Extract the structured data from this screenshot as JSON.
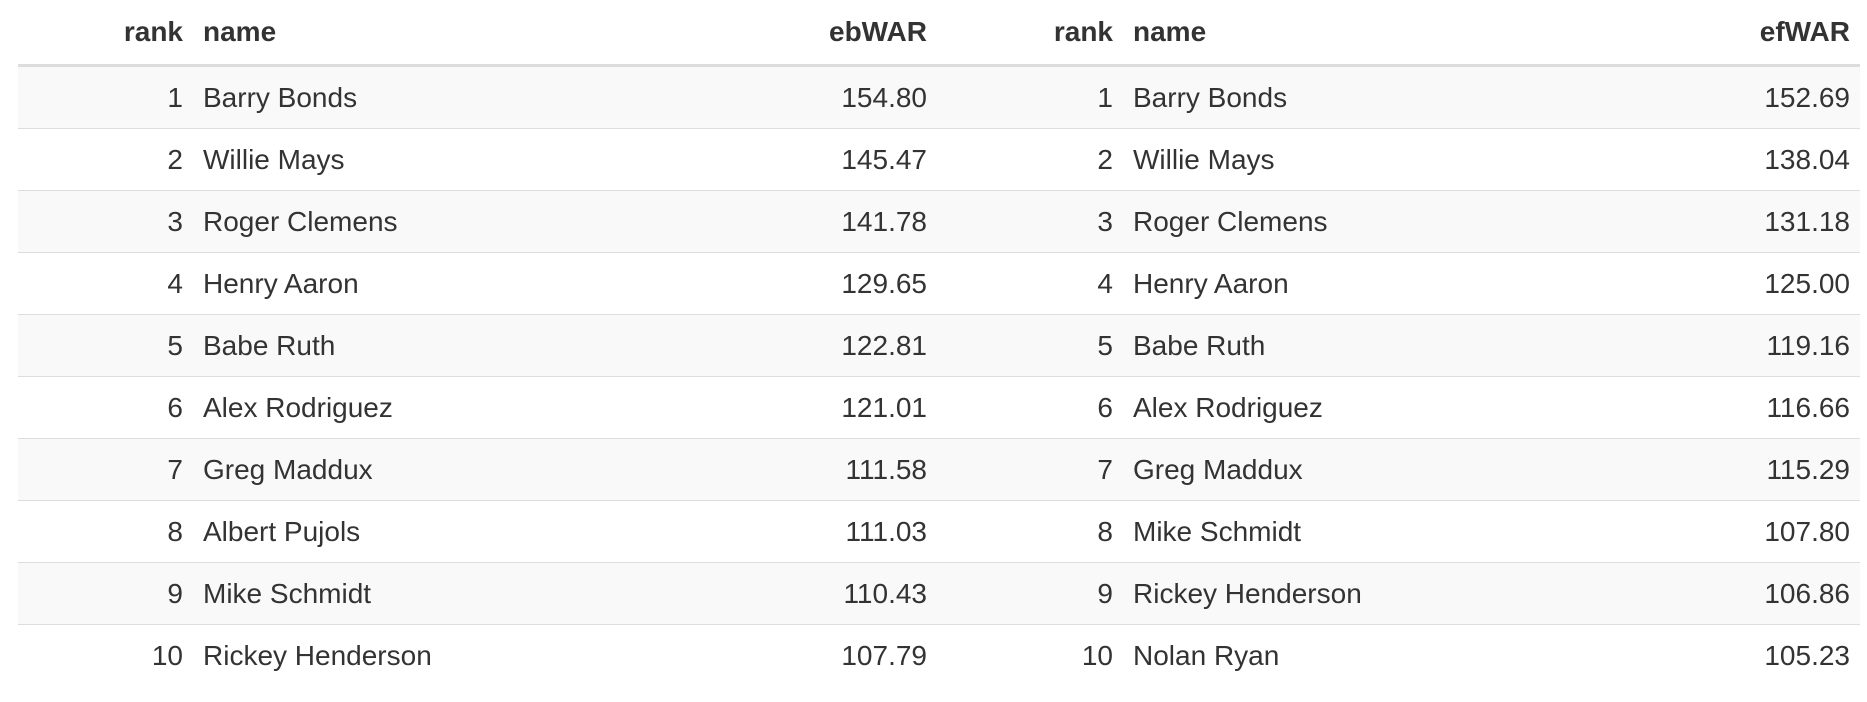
{
  "tables": [
    {
      "headers": {
        "rank": "rank",
        "name": "name",
        "value": "ebWAR"
      },
      "rows": [
        {
          "rank": "1",
          "name": "Barry Bonds",
          "value": "154.80"
        },
        {
          "rank": "2",
          "name": "Willie Mays",
          "value": "145.47"
        },
        {
          "rank": "3",
          "name": "Roger Clemens",
          "value": "141.78"
        },
        {
          "rank": "4",
          "name": "Henry Aaron",
          "value": "129.65"
        },
        {
          "rank": "5",
          "name": "Babe Ruth",
          "value": "122.81"
        },
        {
          "rank": "6",
          "name": "Alex Rodriguez",
          "value": "121.01"
        },
        {
          "rank": "7",
          "name": "Greg Maddux",
          "value": "111.58"
        },
        {
          "rank": "8",
          "name": "Albert Pujols",
          "value": "111.03"
        },
        {
          "rank": "9",
          "name": "Mike Schmidt",
          "value": "110.43"
        },
        {
          "rank": "10",
          "name": "Rickey Henderson",
          "value": "107.79"
        }
      ]
    },
    {
      "headers": {
        "rank": "rank",
        "name": "name",
        "value": "efWAR"
      },
      "rows": [
        {
          "rank": "1",
          "name": "Barry Bonds",
          "value": "152.69"
        },
        {
          "rank": "2",
          "name": "Willie Mays",
          "value": "138.04"
        },
        {
          "rank": "3",
          "name": "Roger Clemens",
          "value": "131.18"
        },
        {
          "rank": "4",
          "name": "Henry Aaron",
          "value": "125.00"
        },
        {
          "rank": "5",
          "name": "Babe Ruth",
          "value": "119.16"
        },
        {
          "rank": "6",
          "name": "Alex Rodriguez",
          "value": "116.66"
        },
        {
          "rank": "7",
          "name": "Greg Maddux",
          "value": "115.29"
        },
        {
          "rank": "8",
          "name": "Mike Schmidt",
          "value": "107.80"
        },
        {
          "rank": "9",
          "name": "Rickey Henderson",
          "value": "106.86"
        },
        {
          "rank": "10",
          "name": "Nolan Ryan",
          "value": "105.23"
        }
      ]
    }
  ]
}
